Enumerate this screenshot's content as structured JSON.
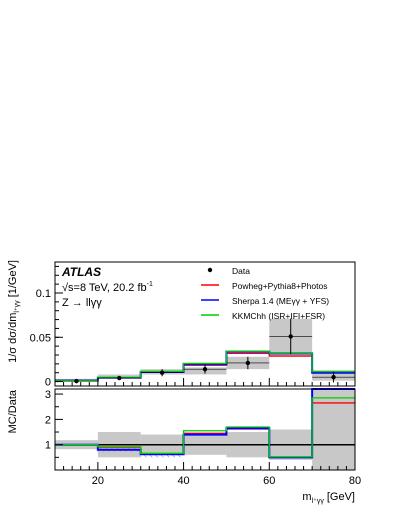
{
  "chart_data": [
    {
      "type": "histogram",
      "panel": "main",
      "ylabel": "1/σ dσ/dm",
      "ylabel_sub": "l⁺γγ",
      "ylabel_unit": " [1/GeV]",
      "ylim": [
        -0.005,
        0.135
      ],
      "yticks": [
        0,
        0.05,
        0.1
      ],
      "ytick_labels": [
        "0",
        "0.05",
        "0.1"
      ],
      "bin_edges": [
        10,
        20,
        30,
        40,
        50,
        60,
        70,
        80
      ],
      "data": {
        "name": "Data",
        "x": [
          15,
          25,
          35,
          45,
          55,
          65,
          75
        ],
        "y": [
          0.0005,
          0.004,
          0.01,
          0.014,
          0.021,
          0.051,
          0.005
        ],
        "yerr": [
          0.0008,
          0.002,
          0.004,
          0.005,
          0.007,
          0.02,
          0.006
        ]
      },
      "uncertainty_band": [
        [
          0.0008,
          0.003
        ],
        [
          0.006,
          0.008
        ],
        [
          0.008,
          0.014
        ],
        [
          0.008,
          0.016
        ],
        [
          0.014,
          0.028
        ],
        [
          0.029,
          0.071
        ],
        [
          0.001,
          0.013
        ]
      ],
      "series": [
        {
          "name": "Powheg+Pythia8+Photos",
          "color": "#ff0000",
          "values": [
            0.0012,
            0.0045,
            0.0105,
            0.0185,
            0.0318,
            0.0288,
            0.0112
          ]
        },
        {
          "name": "Sherpa 1.4 (MEγγ + YFS)",
          "color": "#0000ff",
          "values": [
            0.0012,
            0.0045,
            0.011,
            0.0195,
            0.0338,
            0.0318,
            0.01
          ]
        },
        {
          "name": "KKMChh (ISR+IFI+FSR)",
          "color": "#00cc00",
          "values": [
            0.0012,
            0.005,
            0.0115,
            0.0205,
            0.0342,
            0.032,
            0.0112
          ]
        }
      ]
    },
    {
      "type": "histogram",
      "panel": "ratio",
      "ylabel": "MC/Data",
      "xlabel": "m",
      "xlabel_sub": "l⁺γγ",
      "xlabel_unit": " [GeV]",
      "xlim": [
        10,
        80
      ],
      "xticks": [
        20,
        40,
        60,
        80
      ],
      "xtick_labels": [
        "20",
        "40",
        "60",
        "80"
      ],
      "ylim": [
        0,
        3.2
      ],
      "yticks": [
        1,
        2,
        3
      ],
      "ytick_labels": [
        "1",
        "2",
        "3"
      ],
      "bin_edges": [
        10,
        20,
        30,
        40,
        50,
        60,
        70,
        80
      ],
      "reference_line": 1,
      "uncertainty_band": [
        [
          0.82,
          1.18
        ],
        [
          0.5,
          1.5
        ],
        [
          0.6,
          1.4
        ],
        [
          0.6,
          1.4
        ],
        [
          0.5,
          1.5
        ],
        [
          0.4,
          1.6
        ],
        [
          0.0,
          3.2
        ]
      ],
      "series": [
        {
          "name": "Powheg+Pythia8+Photos",
          "color": "#ff0000",
          "values": [
            1.0,
            0.9,
            0.62,
            1.45,
            1.62,
            0.5,
            2.65
          ]
        },
        {
          "name": "Sherpa 1.4 (MEγγ + YFS)",
          "color": "#0000ff",
          "values": [
            1.0,
            0.8,
            0.62,
            1.4,
            1.65,
            0.5,
            3.2
          ]
        },
        {
          "name": "KKMChh (ISR+IFI+FSR)",
          "color": "#00cc00",
          "values": [
            1.0,
            0.92,
            0.66,
            1.55,
            1.7,
            0.52,
            2.85
          ]
        }
      ]
    }
  ],
  "labels": {
    "atlas": "ATLAS",
    "energy": "√s=8 TeV, 20.2 fb",
    "energy_sup": "-1",
    "process": "Z → llγγ"
  },
  "legend": [
    {
      "name": "Data",
      "kind": "marker",
      "color": "#000000"
    },
    {
      "name": "Powheg+Pythia8+Photos",
      "kind": "line",
      "color": "#ff0000"
    },
    {
      "name": "Sherpa 1.4 (MEγγ + YFS)",
      "kind": "line",
      "color": "#0000ff"
    },
    {
      "name": "KKMChh (ISR+IFI+FSR)",
      "kind": "line",
      "color": "#00cc00"
    }
  ],
  "colors": {
    "band": "#c8c8c8",
    "hatch_red": "#ff6666",
    "hatch_blue": "#6666ff"
  }
}
